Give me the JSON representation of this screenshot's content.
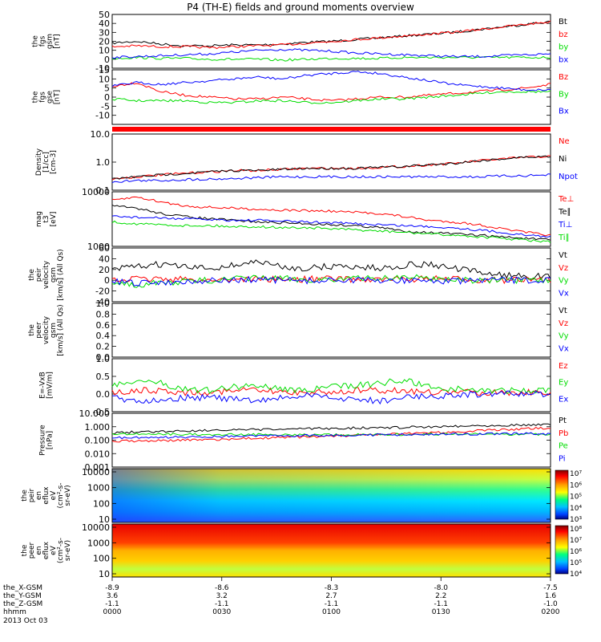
{
  "title": "P4 (TH-E) fields and ground moments overview",
  "colors": {
    "black": "#000000",
    "red": "#ff0000",
    "green": "#00dd00",
    "blue": "#0000ff"
  },
  "chart_data": [
    {
      "type": "line",
      "panel": "fgs-gsm",
      "ylabel": [
        "the",
        "fgs",
        "gsm",
        "[nT]"
      ],
      "yticks": [
        "50",
        "40",
        "30",
        "20",
        "10",
        "0",
        "-10"
      ],
      "ylim": [
        -10,
        50
      ],
      "series": [
        {
          "name": "Bt",
          "color": "black",
          "values": [
            18,
            20,
            17,
            15,
            15,
            16,
            16,
            17,
            19,
            20,
            22,
            24,
            26,
            28,
            30,
            33,
            36,
            39,
            42
          ]
        },
        {
          "name": "bz",
          "color": "red",
          "values": [
            14,
            15,
            14,
            14,
            13,
            14,
            15,
            16,
            18,
            20,
            22,
            24,
            26,
            28,
            30,
            33,
            36,
            39,
            42
          ]
        },
        {
          "name": "by",
          "color": "green",
          "values": [
            1,
            2,
            1,
            1,
            0,
            0,
            0,
            -1,
            0,
            1,
            1,
            1,
            2,
            2,
            2,
            2,
            2,
            2,
            2
          ]
        },
        {
          "name": "bx",
          "color": "blue",
          "values": [
            2,
            3,
            4,
            5,
            6,
            8,
            10,
            11,
            10,
            9,
            7,
            6,
            5,
            4,
            3,
            3,
            4,
            5,
            6
          ]
        }
      ]
    },
    {
      "type": "line",
      "panel": "fgs-gse",
      "ylabel": [
        "the",
        "fgs",
        "gse",
        "[nT]"
      ],
      "yticks": [
        "15",
        "10",
        "5",
        "0",
        "-5",
        "-10"
      ],
      "ylim": [
        -15,
        15
      ],
      "series": [
        {
          "name": "Bz",
          "color": "red",
          "values": [
            6,
            8,
            3,
            1,
            0,
            -1,
            -1,
            0,
            -1,
            -2,
            -1,
            0,
            0,
            1,
            2,
            3,
            4,
            5,
            7
          ]
        },
        {
          "name": "By",
          "color": "green",
          "values": [
            -1,
            -2,
            -2,
            -2,
            -3,
            -3,
            -2,
            -2,
            -3,
            -3,
            -2,
            -1,
            -1,
            0,
            1,
            2,
            3,
            3,
            3
          ]
        },
        {
          "name": "Bx",
          "color": "blue",
          "values": [
            6,
            8,
            7,
            8,
            9,
            10,
            11,
            10,
            12,
            13,
            14,
            13,
            11,
            9,
            7,
            6,
            5,
            4,
            4
          ]
        }
      ]
    },
    {
      "type": "line",
      "panel": "density",
      "ylabel": [
        "Density",
        "[1/cc]",
        "[cm-3]"
      ],
      "log": true,
      "yticks": [
        "10.0",
        "1.0",
        "0.1"
      ],
      "ylim": [
        0.1,
        10
      ],
      "series": [
        {
          "name": "Ne",
          "color": "red",
          "values": [
            0.25,
            0.3,
            0.35,
            0.4,
            0.45,
            0.5,
            0.5,
            0.55,
            0.6,
            0.6,
            0.6,
            0.65,
            0.7,
            0.8,
            0.9,
            1.1,
            1.3,
            1.5,
            1.6
          ]
        },
        {
          "name": "Ni",
          "color": "black",
          "values": [
            0.25,
            0.3,
            0.35,
            0.4,
            0.45,
            0.5,
            0.5,
            0.55,
            0.6,
            0.6,
            0.6,
            0.65,
            0.7,
            0.8,
            0.9,
            1.1,
            1.3,
            1.5,
            1.6
          ]
        },
        {
          "name": "Npot",
          "color": "blue",
          "values": [
            0.2,
            0.22,
            0.22,
            0.24,
            0.25,
            0.26,
            0.28,
            0.3,
            0.3,
            0.3,
            0.3,
            0.3,
            0.3,
            0.3,
            0.3,
            0.3,
            0.32,
            0.33,
            0.35
          ]
        }
      ]
    },
    {
      "type": "line",
      "panel": "temperature",
      "ylabel": [
        "mag",
        "t3",
        "[eV]"
      ],
      "log": true,
      "yticks": [
        "10000",
        "1000"
      ],
      "ylim": [
        1000,
        10000
      ],
      "series": [
        {
          "name": "Te⊥",
          "color": "red",
          "values": [
            7000,
            8000,
            6500,
            5500,
            5200,
            5000,
            4800,
            4600,
            4500,
            4400,
            4200,
            4000,
            3500,
            3000,
            2800,
            2500,
            2100,
            1800,
            1600
          ]
        },
        {
          "name": "Te∥",
          "color": "black",
          "values": [
            5500,
            5000,
            4000,
            3500,
            3200,
            3000,
            2800,
            2700,
            2600,
            2500,
            2400,
            2200,
            1900,
            1800,
            1700,
            1600,
            1500,
            1400,
            1300
          ]
        },
        {
          "name": "Ti⊥",
          "color": "blue",
          "values": [
            3600,
            3400,
            3300,
            3200,
            3100,
            3000,
            3000,
            2900,
            2800,
            2700,
            2600,
            2500,
            2400,
            2300,
            2200,
            2000,
            1800,
            1600,
            1500
          ]
        },
        {
          "name": "Ti∥",
          "color": "green",
          "values": [
            2800,
            2600,
            2500,
            2400,
            2400,
            2300,
            2300,
            2200,
            2200,
            2100,
            2000,
            1900,
            1800,
            1700,
            1600,
            1500,
            1400,
            1300,
            1200
          ]
        }
      ]
    },
    {
      "type": "line",
      "panel": "peir-velocity",
      "ylabel": [
        "the",
        "peir",
        "velocity",
        "gsm",
        "[km/s] (All Qs)"
      ],
      "yticks": [
        "60",
        "40",
        "20",
        "0",
        "-20",
        "-40"
      ],
      "ylim": [
        -40,
        60
      ],
      "series": [
        {
          "name": "Vt",
          "color": "black",
          "values": [
            20,
            25,
            30,
            24,
            22,
            28,
            35,
            24,
            22,
            26,
            25,
            22,
            28,
            30,
            22,
            15,
            10,
            8,
            6
          ]
        },
        {
          "name": "Vz",
          "color": "red",
          "values": [
            0,
            2,
            3,
            1,
            0,
            2,
            3,
            1,
            2,
            3,
            2,
            1,
            2,
            3,
            2,
            1,
            0,
            0,
            0
          ]
        },
        {
          "name": "Vy",
          "color": "green",
          "values": [
            -3,
            -8,
            -5,
            -2,
            0,
            2,
            5,
            3,
            1,
            2,
            3,
            4,
            6,
            4,
            2,
            0,
            -1,
            -1,
            0
          ]
        },
        {
          "name": "Vx",
          "color": "blue",
          "values": [
            -2,
            -6,
            -4,
            -2,
            -1,
            0,
            1,
            0,
            -1,
            0,
            0,
            -1,
            0,
            -1,
            -2,
            -1,
            0,
            0,
            0
          ]
        }
      ]
    },
    {
      "type": "line",
      "panel": "peer-velocity",
      "ylabel": [
        "the",
        "peer",
        "velocity",
        "gsm",
        "[km/s] (All Qs)"
      ],
      "yticks": [
        "1.0",
        "0.8",
        "0.6",
        "0.4",
        "0.2",
        "0.0"
      ],
      "ylim": [
        0,
        1
      ],
      "series": [
        {
          "name": "Vt",
          "color": "black",
          "values": []
        },
        {
          "name": "Vz",
          "color": "red",
          "values": []
        },
        {
          "name": "Vy",
          "color": "green",
          "values": []
        },
        {
          "name": "Vx",
          "color": "blue",
          "values": []
        }
      ]
    },
    {
      "type": "line",
      "panel": "efield",
      "ylabel": [
        "E=-VxB",
        "[mV/m]"
      ],
      "yticks": [
        "1.0",
        "0.5",
        "0.0",
        "-0.5"
      ],
      "ylim": [
        -0.5,
        1
      ],
      "series": [
        {
          "name": "Ez",
          "color": "red",
          "values": [
            0.05,
            0.1,
            0.1,
            0.05,
            0.05,
            0.1,
            0.1,
            0.05,
            0.05,
            0.05,
            0.1,
            0.1,
            0.1,
            0.05,
            0.05,
            0.05,
            0.05,
            0.05,
            0.05
          ]
        },
        {
          "name": "Ey",
          "color": "green",
          "values": [
            0.2,
            0.4,
            0.3,
            0.15,
            0.1,
            0.2,
            0.25,
            0.15,
            0.1,
            0.2,
            0.25,
            0.3,
            0.4,
            0.2,
            0.15,
            0.1,
            0.1,
            0.1,
            0.1
          ]
        },
        {
          "name": "Ex",
          "color": "blue",
          "values": [
            -0.1,
            -0.2,
            -0.15,
            -0.1,
            -0.1,
            -0.15,
            -0.2,
            -0.1,
            -0.05,
            -0.1,
            -0.15,
            -0.2,
            -0.1,
            -0.05,
            -0.05,
            0,
            0,
            0,
            0
          ]
        }
      ]
    },
    {
      "type": "line",
      "panel": "pressure",
      "ylabel": [
        "Pressure",
        "[nPa]"
      ],
      "log": true,
      "yticks": [
        "10.000",
        "1.000",
        "0.100",
        "0.010",
        "0.001"
      ],
      "ylim": [
        0.001,
        10
      ],
      "series": [
        {
          "name": "Pt",
          "color": "black",
          "values": [
            0.35,
            0.4,
            0.45,
            0.5,
            0.55,
            0.55,
            0.6,
            0.65,
            0.7,
            0.75,
            0.8,
            0.85,
            0.9,
            1.0,
            1.1,
            1.2,
            1.3,
            1.4,
            1.5
          ]
        },
        {
          "name": "Pb",
          "color": "red",
          "values": [
            0.08,
            0.09,
            0.09,
            0.1,
            0.11,
            0.12,
            0.14,
            0.16,
            0.18,
            0.2,
            0.22,
            0.25,
            0.3,
            0.35,
            0.4,
            0.5,
            0.6,
            0.7,
            0.8
          ]
        },
        {
          "name": "Pe",
          "color": "green",
          "values": [
            0.3,
            0.3,
            0.28,
            0.27,
            0.27,
            0.26,
            0.26,
            0.26,
            0.25,
            0.25,
            0.25,
            0.26,
            0.27,
            0.28,
            0.28,
            0.28,
            0.28,
            0.28,
            0.28
          ]
        },
        {
          "name": "Pi",
          "color": "blue",
          "values": [
            0.15,
            0.15,
            0.16,
            0.17,
            0.18,
            0.2,
            0.2,
            0.22,
            0.22,
            0.23,
            0.24,
            0.25,
            0.26,
            0.27,
            0.28,
            0.29,
            0.3,
            0.3,
            0.3
          ]
        }
      ]
    },
    {
      "type": "heatmap",
      "panel": "peir-eflux",
      "ylabel": [
        "the",
        "peir",
        "en",
        "eflux",
        "eV",
        "(cm²-s-",
        "sr-eV)"
      ],
      "yticks": [
        "10000",
        "1000",
        "100",
        "10"
      ],
      "colorbar": [
        "10⁷",
        "10⁶",
        "10⁵",
        "10⁴",
        "10³"
      ]
    },
    {
      "type": "heatmap",
      "panel": "peer-eflux",
      "ylabel": [
        "the",
        "peer",
        "en",
        "eflux",
        "eV",
        "(cm²-s-",
        "sr-eV)"
      ],
      "yticks": [
        "10000",
        "1000",
        "100",
        "10"
      ],
      "colorbar": [
        "10⁸",
        "10⁷",
        "10⁶",
        "10⁵",
        "10⁴"
      ]
    }
  ],
  "xaxis": {
    "rows": [
      {
        "label": "the_X-GSM",
        "values": [
          "-8.9",
          "-8.6",
          "-8.3",
          "-8.0",
          "-7.5"
        ]
      },
      {
        "label": "the_Y-GSM",
        "values": [
          "3.6",
          "3.2",
          "2.7",
          "2.2",
          "1.6"
        ]
      },
      {
        "label": "the_Z-GSM",
        "values": [
          "-1.1",
          "-1.1",
          "-1.1",
          "-1.1",
          "-1.0"
        ]
      },
      {
        "label": "hhmm",
        "values": [
          "0000",
          "0030",
          "0100",
          "0130",
          "0200"
        ]
      }
    ],
    "date": "2013 Oct 03"
  }
}
